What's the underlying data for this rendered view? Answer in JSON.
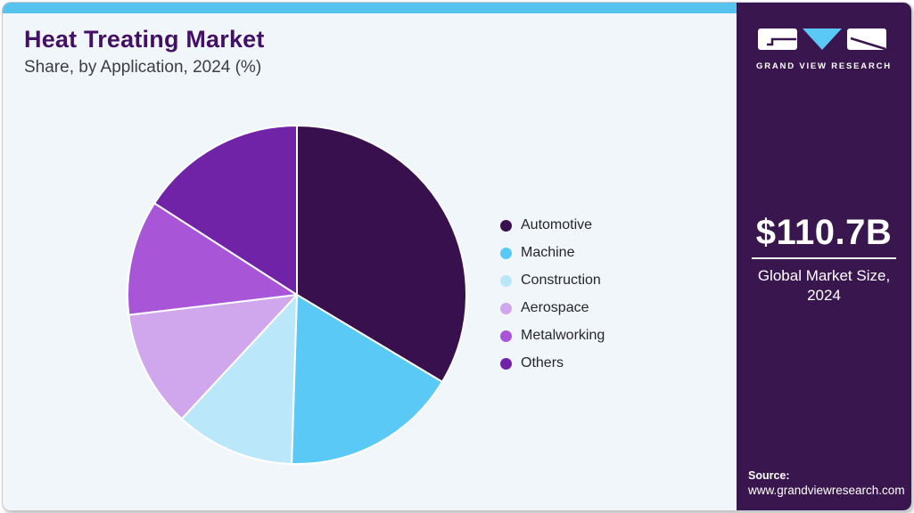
{
  "page": {
    "title": "Heat Treating Market",
    "subtitle": "Share, by Application, 2024 (%)"
  },
  "chart_data": {
    "type": "pie",
    "title": "Heat Treating Market Share, by Application, 2024 (%)",
    "start_angle_deg": 0,
    "direction": "clockwise",
    "labels_shown_on_slices": false,
    "legend_position": "right",
    "slices": [
      {
        "label": "Automotive",
        "value": 33.6,
        "color": "#38104E"
      },
      {
        "label": "Machine",
        "value": 16.9,
        "color": "#5BC9F5"
      },
      {
        "label": "Construction",
        "value": 11.4,
        "color": "#BAE7F9"
      },
      {
        "label": "Aerospace",
        "value": 11.2,
        "color": "#D0A7EC"
      },
      {
        "label": "Metalworking",
        "value": 11.0,
        "color": "#A855D8"
      },
      {
        "label": "Others",
        "value": 15.9,
        "color": "#7023A6"
      }
    ]
  },
  "sidebar": {
    "logo_text": "GRAND VIEW RESEARCH",
    "market_size": "$110.7B",
    "market_size_caption": "Global Market Size, 2024",
    "source_label": "Source:",
    "source_url": "www.grandviewresearch.com"
  },
  "colors": {
    "topbar_accent": "#55C3EE",
    "main_background": "#F1F6FB",
    "sidebar_background": "#3A164F",
    "title_text": "#421064",
    "subtitle_text": "#3E3E42",
    "logo_triangle": "#5BC9F5",
    "slice_separator": "#FFFFFF"
  }
}
